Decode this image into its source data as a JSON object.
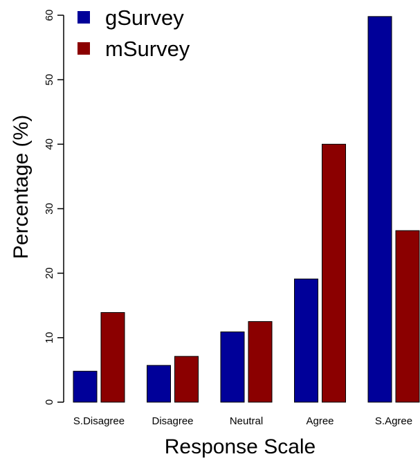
{
  "chart_data": {
    "type": "bar",
    "categories": [
      "S.Disagree",
      "Disagree",
      "Neutral",
      "Agree",
      "S.Agree"
    ],
    "series": [
      {
        "name": "gSurvey",
        "color": "#000099",
        "values": [
          4.8,
          5.7,
          10.9,
          19.1,
          59.8
        ]
      },
      {
        "name": "mSurvey",
        "color": "#8b0000",
        "values": [
          13.9,
          7.1,
          12.5,
          40.0,
          26.6
        ]
      }
    ],
    "xlabel": "Response Scale",
    "ylabel": "Percentage (%)",
    "ylim": [
      0,
      60
    ],
    "yticks": [
      0,
      10,
      20,
      30,
      40,
      50,
      60
    ],
    "legend": "top-left",
    "grid": false
  }
}
